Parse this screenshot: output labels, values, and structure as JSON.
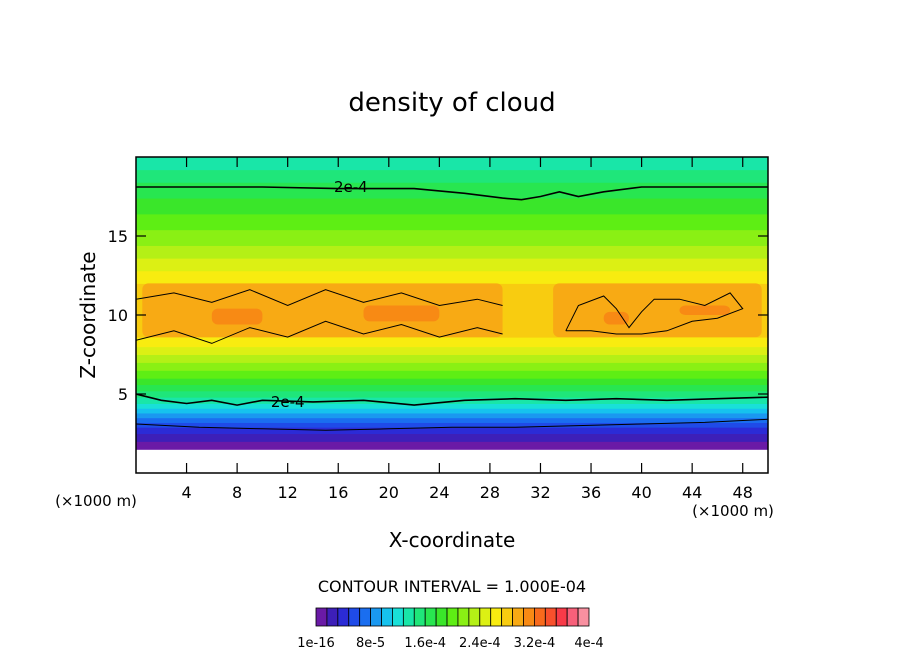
{
  "chart_data": {
    "type": "heatmap",
    "title": "density of cloud",
    "xlabel": "X-coordinate",
    "ylabel": "Z-coordinate",
    "x_unit": "(×1000 m)",
    "z_unit": "(×1000 m)",
    "xlim": [
      0,
      50
    ],
    "ylim": [
      0,
      20
    ],
    "x_ticks": [
      4,
      8,
      12,
      16,
      20,
      24,
      28,
      32,
      36,
      40,
      44,
      48
    ],
    "y_ticks": [
      5,
      10,
      15
    ],
    "contour_interval_text": "CONTOUR INTERVAL = 1.000E-04",
    "contour_labels": [
      {
        "text": "2e-4",
        "x": 17,
        "z": 18.1
      },
      {
        "text": "2e-4",
        "x": 12,
        "z": 4.5
      }
    ],
    "colorbar": {
      "tick_labels": [
        "1e-16",
        "8e-5",
        "1.6e-4",
        "2.4e-4",
        "3.2e-4",
        "4e-4"
      ],
      "colors": [
        "#6a1aa6",
        "#3d1fb8",
        "#2b2bd6",
        "#1f4be8",
        "#1a6ef0",
        "#1a98f0",
        "#16c2ee",
        "#19e0d8",
        "#19e6a8",
        "#1fe67a",
        "#28e650",
        "#3ae62a",
        "#5eee14",
        "#8af014",
        "#b4f016",
        "#dcf014",
        "#f8ec10",
        "#f8cc10",
        "#f8aa14",
        "#f88a14",
        "#f86a1c",
        "#f8502c",
        "#f83a48",
        "#f8607a",
        "#f890a0"
      ]
    },
    "z_levels": [
      {
        "z_from": 0,
        "z_to": 1.5,
        "color": "#ffffff"
      },
      {
        "z_from": 1.5,
        "z_to": 2.0,
        "color": "#6a1aa6"
      },
      {
        "z_from": 2.0,
        "z_to": 2.5,
        "color": "#3d1fb8"
      },
      {
        "z_from": 2.5,
        "z_to": 2.9,
        "color": "#2b2bd6"
      },
      {
        "z_from": 2.9,
        "z_to": 3.2,
        "color": "#1f4be8"
      },
      {
        "z_from": 3.2,
        "z_to": 3.5,
        "color": "#1a6ef0"
      },
      {
        "z_from": 3.5,
        "z_to": 3.8,
        "color": "#1a98f0"
      },
      {
        "z_from": 3.8,
        "z_to": 4.1,
        "color": "#16c2ee"
      },
      {
        "z_from": 4.1,
        "z_to": 4.4,
        "color": "#19e0d8"
      },
      {
        "z_from": 4.4,
        "z_to": 4.8,
        "color": "#19e6a8"
      },
      {
        "z_from": 4.8,
        "z_to": 5.2,
        "color": "#1fe67a"
      },
      {
        "z_from": 5.2,
        "z_to": 5.6,
        "color": "#28e650"
      },
      {
        "z_from": 5.6,
        "z_to": 6.0,
        "color": "#3ae62a"
      },
      {
        "z_from": 6.0,
        "z_to": 6.5,
        "color": "#5eee14"
      },
      {
        "z_from": 6.5,
        "z_to": 7.0,
        "color": "#8af014"
      },
      {
        "z_from": 7.0,
        "z_to": 7.5,
        "color": "#b4f016"
      },
      {
        "z_from": 7.5,
        "z_to": 8.0,
        "color": "#dcf014"
      },
      {
        "z_from": 8.0,
        "z_to": 8.6,
        "color": "#f8ec10"
      },
      {
        "z_from": 8.6,
        "z_to": 12.0,
        "color": "#f8cc10"
      },
      {
        "z_from": 12.0,
        "z_to": 12.8,
        "color": "#f8ec10"
      },
      {
        "z_from": 12.8,
        "z_to": 13.6,
        "color": "#dcf014"
      },
      {
        "z_from": 13.6,
        "z_to": 14.4,
        "color": "#b4f016"
      },
      {
        "z_from": 14.4,
        "z_to": 15.4,
        "color": "#8af014"
      },
      {
        "z_from": 15.4,
        "z_to": 16.4,
        "color": "#5eee14"
      },
      {
        "z_from": 16.4,
        "z_to": 17.4,
        "color": "#3ae62a"
      },
      {
        "z_from": 17.4,
        "z_to": 18.4,
        "color": "#28e650"
      },
      {
        "z_from": 18.4,
        "z_to": 19.2,
        "color": "#1fe67a"
      },
      {
        "z_from": 19.2,
        "z_to": 20.0,
        "color": "#19e6a8"
      }
    ],
    "orange_patches": [
      {
        "x_from": 0.5,
        "x_to": 29,
        "z_from": 8.6,
        "z_to": 12.0,
        "color": "#f8aa14"
      },
      {
        "x_from": 33,
        "x_to": 49.5,
        "z_from": 8.6,
        "z_to": 12.0,
        "color": "#f8aa14"
      },
      {
        "x_from": 6,
        "x_to": 10,
        "z_from": 9.4,
        "z_to": 10.4,
        "color": "#f88a14"
      },
      {
        "x_from": 18,
        "x_to": 24,
        "z_from": 9.6,
        "z_to": 10.6,
        "color": "#f88a14"
      },
      {
        "x_from": 37,
        "x_to": 39,
        "z_from": 9.4,
        "z_to": 10.2,
        "color": "#f88a14"
      },
      {
        "x_from": 43,
        "x_to": 47,
        "z_from": 10.0,
        "z_to": 10.6,
        "color": "#f88a14"
      }
    ],
    "contour_lines": [
      {
        "name": "upper-2e-4",
        "points": [
          [
            0,
            18.1
          ],
          [
            10,
            18.1
          ],
          [
            16,
            18.0
          ],
          [
            22,
            18.0
          ],
          [
            26,
            17.7
          ],
          [
            29,
            17.4
          ],
          [
            30.5,
            17.3
          ],
          [
            32,
            17.5
          ],
          [
            33.5,
            17.8
          ],
          [
            35,
            17.5
          ],
          [
            37,
            17.8
          ],
          [
            40,
            18.1
          ],
          [
            50,
            18.1
          ]
        ]
      },
      {
        "name": "lower-2e-4",
        "points": [
          [
            0,
            5.0
          ],
          [
            2,
            4.6
          ],
          [
            4,
            4.4
          ],
          [
            6,
            4.6
          ],
          [
            8,
            4.3
          ],
          [
            10,
            4.6
          ],
          [
            14,
            4.5
          ],
          [
            18,
            4.6
          ],
          [
            22,
            4.3
          ],
          [
            26,
            4.6
          ],
          [
            30,
            4.7
          ],
          [
            34,
            4.6
          ],
          [
            38,
            4.7
          ],
          [
            42,
            4.6
          ],
          [
            46,
            4.7
          ],
          [
            50,
            4.8
          ]
        ]
      },
      {
        "name": "lower-1e-4",
        "points": [
          [
            0,
            3.1
          ],
          [
            5,
            2.9
          ],
          [
            10,
            2.8
          ],
          [
            15,
            2.7
          ],
          [
            20,
            2.8
          ],
          [
            25,
            2.9
          ],
          [
            30,
            2.9
          ],
          [
            35,
            3.0
          ],
          [
            40,
            3.1
          ],
          [
            45,
            3.2
          ],
          [
            50,
            3.4
          ]
        ]
      },
      {
        "name": "mid-left-upper",
        "points": [
          [
            0,
            11.0
          ],
          [
            3,
            11.4
          ],
          [
            6,
            10.8
          ],
          [
            9,
            11.6
          ],
          [
            12,
            10.6
          ],
          [
            15,
            11.6
          ],
          [
            18,
            10.8
          ],
          [
            21,
            11.4
          ],
          [
            24,
            10.6
          ],
          [
            27,
            11.0
          ],
          [
            29,
            10.6
          ]
        ]
      },
      {
        "name": "mid-left-lower",
        "points": [
          [
            0,
            8.4
          ],
          [
            3,
            9.0
          ],
          [
            6,
            8.2
          ],
          [
            9,
            9.2
          ],
          [
            12,
            8.6
          ],
          [
            15,
            9.6
          ],
          [
            18,
            8.8
          ],
          [
            21,
            9.4
          ],
          [
            24,
            8.6
          ],
          [
            27,
            9.2
          ],
          [
            29,
            8.8
          ]
        ]
      },
      {
        "name": "mid-right-loop",
        "points": [
          [
            34,
            9.0
          ],
          [
            35,
            10.6
          ],
          [
            37,
            11.2
          ],
          [
            38,
            10.4
          ],
          [
            39,
            9.2
          ],
          [
            40,
            10.2
          ],
          [
            41,
            11.0
          ],
          [
            43,
            11.0
          ],
          [
            45,
            10.6
          ],
          [
            47,
            11.4
          ],
          [
            48,
            10.4
          ],
          [
            46,
            9.8
          ],
          [
            44,
            9.6
          ],
          [
            42,
            9.0
          ],
          [
            40,
            8.8
          ],
          [
            38,
            8.8
          ],
          [
            36,
            9.0
          ],
          [
            34,
            9.0
          ]
        ]
      }
    ]
  }
}
